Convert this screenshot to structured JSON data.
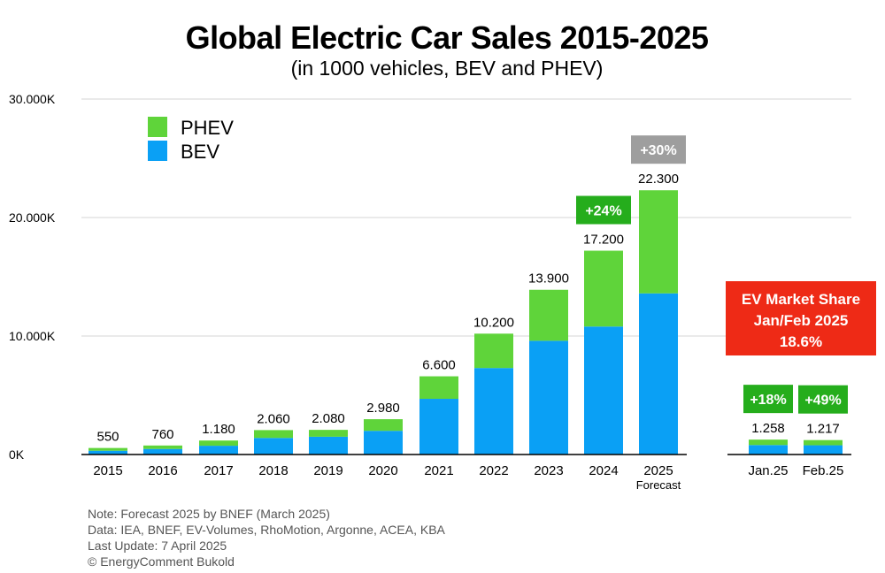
{
  "chart_data": {
    "type": "bar",
    "stacked": true,
    "title": "Global Electric Car Sales 2015-2025",
    "subtitle": "(in 1000 vehicles, BEV and PHEV)",
    "xlabel": "",
    "ylabel": "",
    "ylim": [
      0,
      30000
    ],
    "yticks": [
      0,
      10000,
      20000,
      30000
    ],
    "ytick_labels": [
      "0K",
      "10.000K",
      "20.000K",
      "30.000K"
    ],
    "grid": true,
    "legend_position": "top-left",
    "categories": [
      "2015",
      "2016",
      "2017",
      "2018",
      "2019",
      "2020",
      "2021",
      "2022",
      "2023",
      "2024",
      "2025",
      "Jan.25",
      "Feb.25"
    ],
    "category_sublabels": [
      "",
      "",
      "",
      "",
      "",
      "",
      "",
      "",
      "",
      "",
      "Forecast",
      "",
      ""
    ],
    "totals": [
      550,
      760,
      1180,
      2060,
      2080,
      2980,
      6600,
      10200,
      13900,
      17200,
      22300,
      1258,
      1217
    ],
    "total_labels": [
      "550",
      "760",
      "1.180",
      "2.060",
      "2.080",
      "2.980",
      "6.600",
      "10.200",
      "13.900",
      "17.200",
      "22.300",
      "1.258",
      "1.217"
    ],
    "series": [
      {
        "name": "BEV",
        "color": "#0aa0f5",
        "values": [
          320,
          470,
          740,
          1400,
          1500,
          2000,
          4700,
          7300,
          9600,
          10800,
          13600,
          800,
          780
        ]
      },
      {
        "name": "PHEV",
        "color": "#5fd43a",
        "values": [
          230,
          290,
          440,
          660,
          580,
          980,
          1900,
          2900,
          4300,
          6400,
          8700,
          458,
          437
        ]
      }
    ],
    "growth_badges": [
      {
        "category": "2024",
        "label": "+24%",
        "color": "#25ad1c"
      },
      {
        "category": "2025",
        "label": "+30%",
        "color": "#9e9e9e"
      },
      {
        "category": "Jan.25",
        "label": "+18%",
        "color": "#25ad1c"
      },
      {
        "category": "Feb.25",
        "label": "+49%",
        "color": "#25ad1c"
      }
    ],
    "annotation": {
      "lines": [
        "EV Market Share",
        "Jan/Feb 2025",
        "18.6%"
      ],
      "color": "#ee2a16"
    }
  },
  "notes": [
    "Note: Forecast 2025 by BNEF (March 2025)",
    "Data: IEA, BNEF, EV-Volumes, RhoMotion, Argonne, ACEA, KBA",
    "Last Update: 7 April 2025",
    "© EnergyComment Bukold"
  ]
}
